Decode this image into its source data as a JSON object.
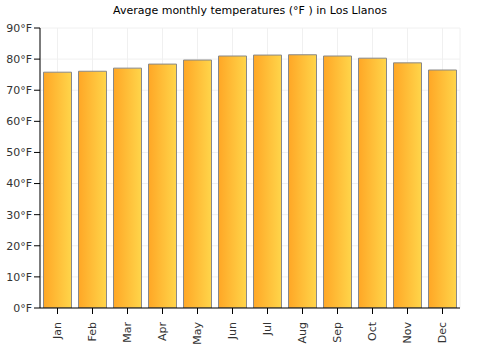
{
  "chart_data": {
    "type": "bar",
    "title": "Average monthly temperatures (°F ) in Los Llanos",
    "categories": [
      "Jan",
      "Feb",
      "Mar",
      "Apr",
      "May",
      "Jun",
      "Jul",
      "Aug",
      "Sep",
      "Oct",
      "Nov",
      "Dec"
    ],
    "values": [
      75.8,
      76.1,
      77.1,
      78.4,
      79.7,
      81.0,
      81.3,
      81.4,
      81.0,
      80.3,
      78.8,
      76.5
    ],
    "color": "#ffa726",
    "ylim": [
      0,
      90
    ],
    "yticks": [
      {
        "value": 0,
        "label": "0°F"
      },
      {
        "value": 10,
        "label": "10°F"
      },
      {
        "value": 20,
        "label": "20°F"
      },
      {
        "value": 30,
        "label": "30°F"
      },
      {
        "value": 40,
        "label": "40°F"
      },
      {
        "value": 50,
        "label": "50°F"
      },
      {
        "value": 60,
        "label": "60°F"
      },
      {
        "value": 70,
        "label": "70°F"
      },
      {
        "value": 80,
        "label": "80°F"
      },
      {
        "value": 90,
        "label": "90°F"
      }
    ],
    "grid": true
  }
}
